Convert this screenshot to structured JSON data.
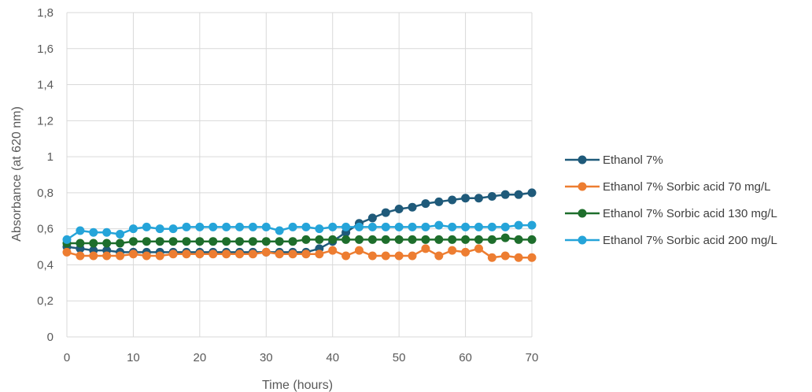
{
  "chart_data": {
    "type": "line",
    "title": "",
    "xlabel": "Time (hours)",
    "ylabel": "Absorbance (at 620 nm)",
    "xlim": [
      0,
      70
    ],
    "ylim": [
      0,
      1.8
    ],
    "x_ticks": [
      "0",
      "10",
      "20",
      "30",
      "40",
      "50",
      "60",
      "70"
    ],
    "y_ticks": [
      "0",
      "0,2",
      "0,4",
      "0,6",
      "0,8",
      "1",
      "1,2",
      "1,4",
      "1,6",
      "1,8"
    ],
    "grid": true,
    "legend_position": "right",
    "x": [
      0,
      2,
      4,
      6,
      8,
      10,
      12,
      14,
      16,
      18,
      20,
      22,
      24,
      26,
      28,
      30,
      32,
      34,
      36,
      38,
      40,
      42,
      44,
      46,
      48,
      50,
      52,
      54,
      56,
      58,
      60,
      62,
      64,
      66,
      68,
      70
    ],
    "series": [
      {
        "name": "Ethanol 7%",
        "color": "#1f5a7a",
        "values": [
          0.5,
          0.49,
          0.48,
          0.48,
          0.47,
          0.47,
          0.47,
          0.47,
          0.47,
          0.47,
          0.47,
          0.47,
          0.47,
          0.47,
          0.47,
          0.47,
          0.47,
          0.47,
          0.47,
          0.49,
          0.53,
          0.58,
          0.63,
          0.66,
          0.69,
          0.71,
          0.72,
          0.74,
          0.75,
          0.76,
          0.77,
          0.77,
          0.78,
          0.79,
          0.79,
          0.8
        ]
      },
      {
        "name": "Ethanol 7% Sorbic acid 70 mg/L",
        "color": "#ed7d31",
        "values": [
          0.47,
          0.45,
          0.45,
          0.45,
          0.45,
          0.46,
          0.45,
          0.45,
          0.46,
          0.46,
          0.46,
          0.46,
          0.46,
          0.46,
          0.46,
          0.47,
          0.46,
          0.46,
          0.46,
          0.46,
          0.48,
          0.45,
          0.48,
          0.45,
          0.45,
          0.45,
          0.45,
          0.49,
          0.45,
          0.48,
          0.47,
          0.49,
          0.44,
          0.45,
          0.44,
          0.44
        ]
      },
      {
        "name": "Ethanol 7% Sorbic acid 130 mg/L",
        "color": "#1e6e2c",
        "values": [
          0.52,
          0.52,
          0.52,
          0.52,
          0.52,
          0.53,
          0.53,
          0.53,
          0.53,
          0.53,
          0.53,
          0.53,
          0.53,
          0.53,
          0.53,
          0.53,
          0.53,
          0.53,
          0.54,
          0.54,
          0.54,
          0.54,
          0.54,
          0.54,
          0.54,
          0.54,
          0.54,
          0.54,
          0.54,
          0.54,
          0.54,
          0.54,
          0.54,
          0.55,
          0.54,
          0.54
        ]
      },
      {
        "name": "Ethanol 7% Sorbic acid 200 mg/L",
        "color": "#25a4d9",
        "values": [
          0.54,
          0.59,
          0.58,
          0.58,
          0.57,
          0.6,
          0.61,
          0.6,
          0.6,
          0.61,
          0.61,
          0.61,
          0.61,
          0.61,
          0.61,
          0.61,
          0.59,
          0.61,
          0.61,
          0.6,
          0.61,
          0.61,
          0.61,
          0.61,
          0.61,
          0.61,
          0.61,
          0.61,
          0.62,
          0.61,
          0.61,
          0.61,
          0.61,
          0.61,
          0.62,
          0.62
        ]
      }
    ]
  }
}
